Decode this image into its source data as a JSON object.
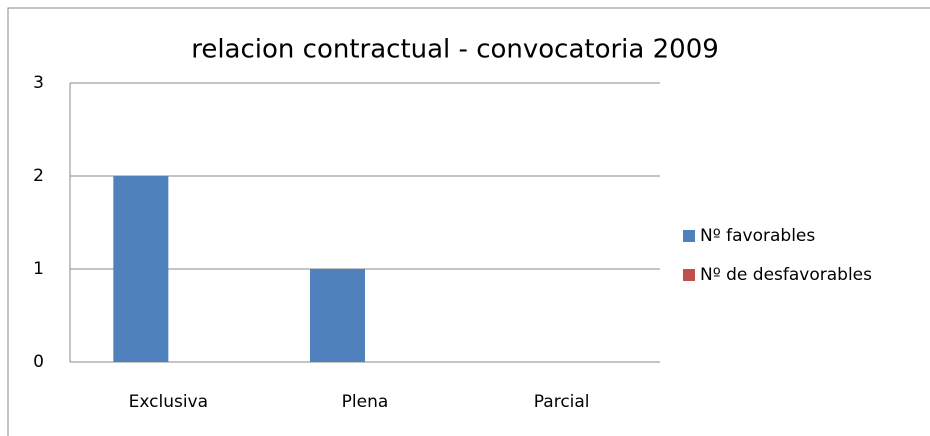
{
  "chart_data": {
    "type": "bar",
    "title": "relacion contractual - convocatoria 2009",
    "categories": [
      "Exclusiva",
      "Plena",
      "Parcial"
    ],
    "series": [
      {
        "name": "Nº favorables",
        "color": "#4f81bd",
        "values": [
          2,
          1,
          0
        ]
      },
      {
        "name": "Nº de desfavorables",
        "color": "#c0504d",
        "values": [
          0,
          0,
          0
        ]
      }
    ],
    "ylim": [
      0,
      3
    ],
    "yticks": [
      0,
      1,
      2,
      3
    ],
    "grid": true,
    "legend": "right"
  }
}
